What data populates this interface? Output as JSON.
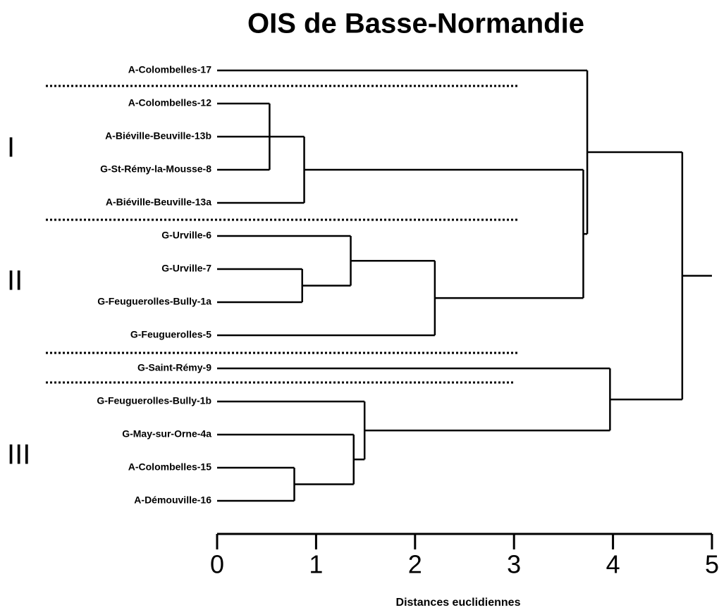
{
  "chart_data": {
    "type": "dendrogram",
    "title": "OIS de Basse-Normandie",
    "x_label": "Distances euclidiennes",
    "leaves": [
      "A-Colombelles-17",
      "A-Colombelles-12",
      "A-Biéville-Beuville-13b",
      "G-St-Rémy-la-Mousse-8",
      "A-Biéville-Beuville-13a",
      "G-Urville-6",
      "G-Urville-7",
      "G-Feuguerolles-Bully-1a",
      "G-Feuguerolles-5",
      "G-Saint-Rémy-9",
      "G-Feuguerolles-Bully-1b",
      "G-May-sur-Orne-4a",
      "A-Colombelles-15",
      "A-Démouville-16"
    ],
    "merges": [
      {
        "children": [
          1,
          2,
          3
        ],
        "height": 0.53
      },
      {
        "children": [
          14,
          4
        ],
        "height": 0.88
      },
      {
        "children": [
          6,
          7
        ],
        "height": 0.86
      },
      {
        "children": [
          5,
          16
        ],
        "height": 1.35
      },
      {
        "children": [
          17,
          8
        ],
        "height": 2.2
      },
      {
        "children": [
          15,
          18
        ],
        "height": 3.7
      },
      {
        "children": [
          0,
          19
        ],
        "height": 3.74
      },
      {
        "children": [
          12,
          13
        ],
        "height": 0.78
      },
      {
        "children": [
          11,
          21
        ],
        "height": 1.38
      },
      {
        "children": [
          10,
          22
        ],
        "height": 1.49
      },
      {
        "children": [
          9,
          23
        ],
        "height": 3.97
      },
      {
        "children": [
          20,
          24
        ],
        "height": 4.7
      }
    ],
    "groups": [
      "I",
      "II",
      "III"
    ],
    "xlim": [
      0,
      5
    ],
    "xticks": [
      0,
      1,
      2,
      3,
      4,
      5
    ],
    "color": "#000000"
  }
}
